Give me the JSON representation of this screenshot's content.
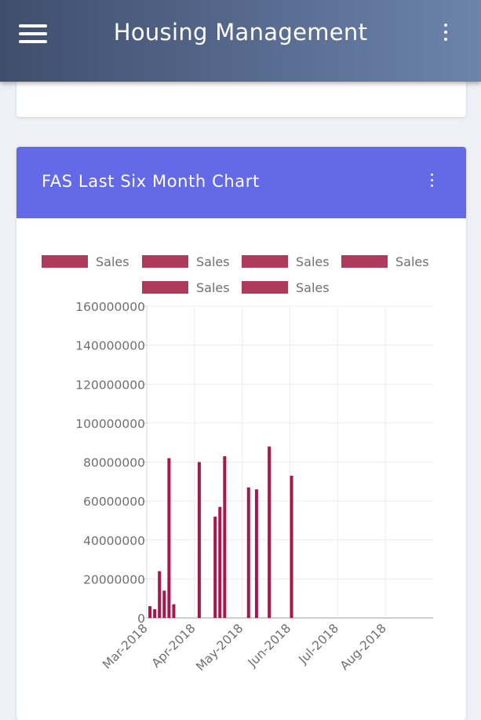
{
  "appbar": {
    "title": "Housing Management",
    "menu_icon": "hamburger-menu-icon",
    "more_icon": "more-vertical-icon"
  },
  "card": {
    "title": "FAS Last Six Month Chart",
    "more_icon": "more-vertical-icon"
  },
  "colors": {
    "appbar_start": "#3f4e6c",
    "appbar_end": "#6d83aa",
    "card_header": "#6369e7",
    "bar": "#a8164a",
    "legend_swatch": "#b03a5c"
  },
  "chart_data": {
    "type": "bar",
    "title": "",
    "legend": [
      "Sales",
      "Sales",
      "Sales",
      "Sales",
      "Sales",
      "Sales"
    ],
    "legend_position": "top",
    "ylim": [
      0,
      160000000
    ],
    "y_ticks": [
      "0",
      "20000000",
      "40000000",
      "60000000",
      "80000000",
      "100000000",
      "120000000",
      "140000000",
      "160000000"
    ],
    "x_ticks": [
      "Mar-2018",
      "Apr-2018",
      "May-2018",
      "Jun-2018",
      "Jul-2018",
      "Aug-2018"
    ],
    "x_unit": "days since 2018-03-01",
    "xlim": [
      0,
      180
    ],
    "grid": true,
    "bars": [
      {
        "x": 2,
        "value": 6000000
      },
      {
        "x": 5,
        "value": 4500000
      },
      {
        "x": 8,
        "value": 24000000
      },
      {
        "x": 11,
        "value": 14000000
      },
      {
        "x": 14,
        "value": 82000000
      },
      {
        "x": 17,
        "value": 7000000
      },
      {
        "x": 33,
        "value": 80000000
      },
      {
        "x": 43,
        "value": 52000000
      },
      {
        "x": 46,
        "value": 57000000
      },
      {
        "x": 49,
        "value": 83000000
      },
      {
        "x": 64,
        "value": 67000000
      },
      {
        "x": 69,
        "value": 66000000
      },
      {
        "x": 77,
        "value": 88000000
      },
      {
        "x": 91,
        "value": 73000000
      }
    ]
  }
}
